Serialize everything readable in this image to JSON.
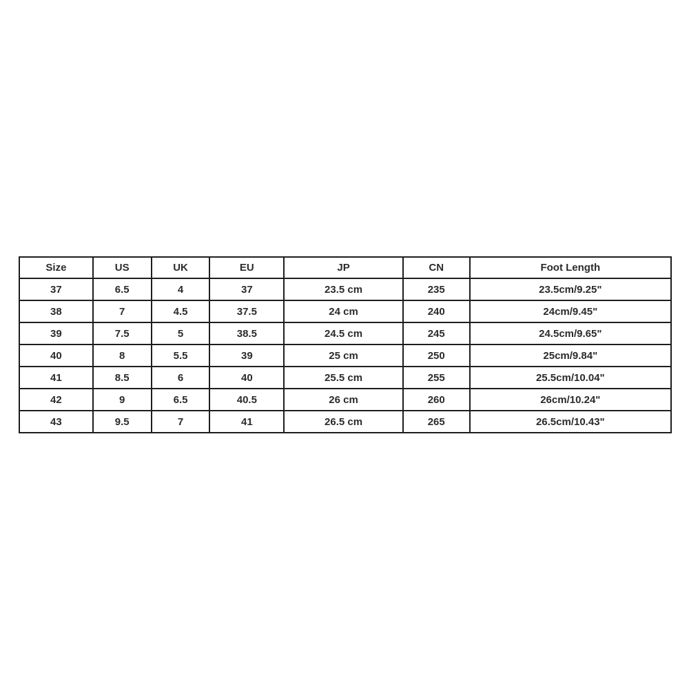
{
  "page": {
    "background_color": "#ffffff",
    "border_color": "#1d1d1d",
    "text_color": "#2b2b2b"
  },
  "size_chart": {
    "columns": [
      "Size",
      "US",
      "UK",
      "EU",
      "JP",
      "CN",
      "Foot Length"
    ],
    "rows": [
      [
        "37",
        "6.5",
        "4",
        "37",
        "23.5 cm",
        "235",
        "23.5cm/9.25\""
      ],
      [
        "38",
        "7",
        "4.5",
        "37.5",
        "24 cm",
        "240",
        "24cm/9.45\""
      ],
      [
        "39",
        "7.5",
        "5",
        "38.5",
        "24.5 cm",
        "245",
        "24.5cm/9.65\""
      ],
      [
        "40",
        "8",
        "5.5",
        "39",
        "25 cm",
        "250",
        "25cm/9.84\""
      ],
      [
        "41",
        "8.5",
        "6",
        "40",
        "25.5 cm",
        "255",
        "25.5cm/10.04\""
      ],
      [
        "42",
        "9",
        "6.5",
        "40.5",
        "26 cm",
        "260",
        "26cm/10.24\""
      ],
      [
        "43",
        "9.5",
        "7",
        "41",
        "26.5 cm",
        "265",
        "26.5cm/10.43\""
      ]
    ]
  }
}
